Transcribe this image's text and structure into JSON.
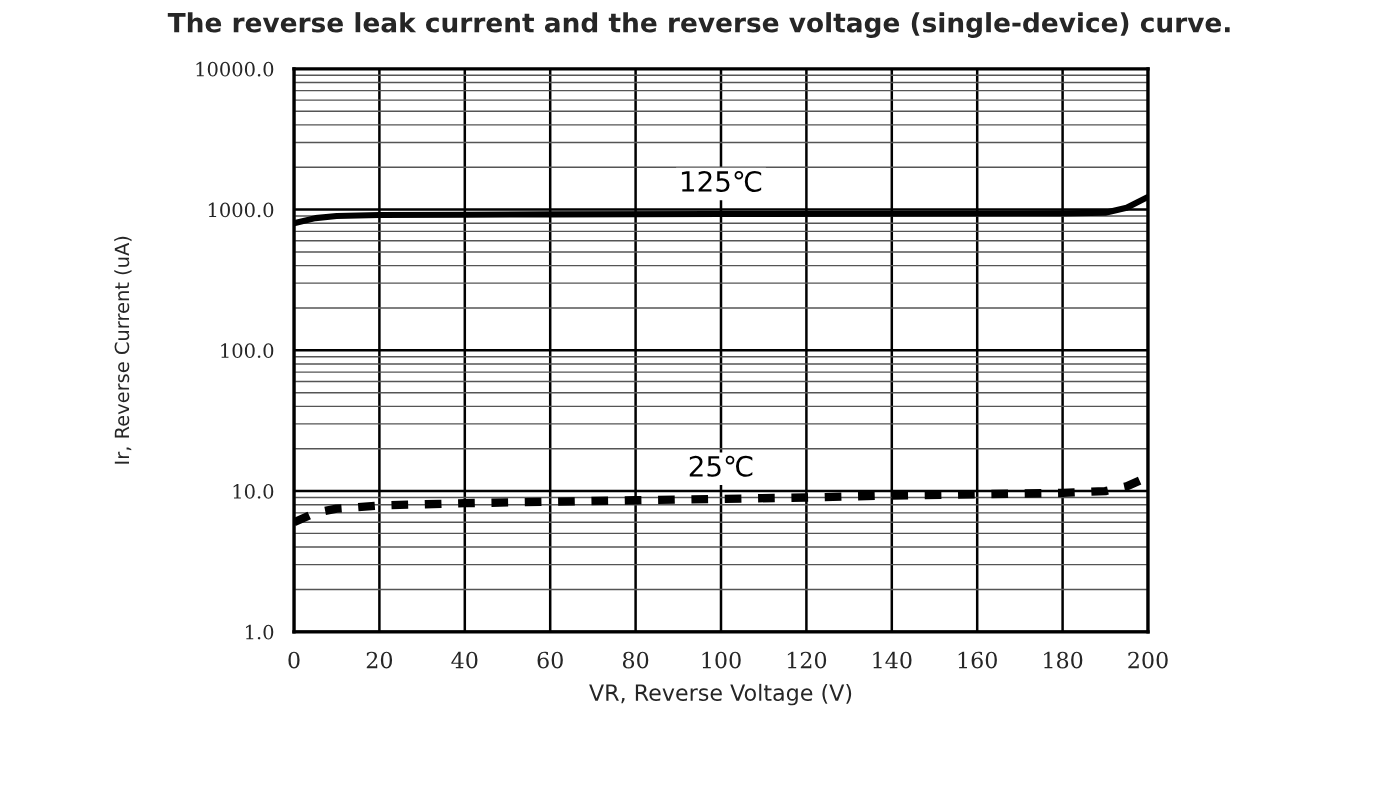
{
  "chart_data": {
    "type": "line",
    "title": "The reverse leak current and the reverse voltage (single-device) curve.",
    "xlabel": "VR, Reverse Voltage (V)",
    "ylabel": "Ir, Reverse Current (uA)",
    "log": "y",
    "grid": true,
    "legend": false,
    "marker": "none",
    "xlim": [
      0,
      200
    ],
    "xticks": [
      0,
      20,
      40,
      60,
      80,
      100,
      120,
      140,
      160,
      180,
      200
    ],
    "ylim": [
      1,
      10000
    ],
    "yticks": [
      {
        "value": 1,
        "label": "1.0"
      },
      {
        "value": 10,
        "label": "10.0"
      },
      {
        "value": 100,
        "label": "100.0"
      },
      {
        "value": 1000,
        "label": "1000.0"
      },
      {
        "value": 10000,
        "label": "10000.0"
      }
    ],
    "series": [
      {
        "name": "125℃",
        "color": "#000000",
        "line_style": "solid",
        "x": [
          0,
          5,
          10,
          20,
          40,
          60,
          100,
          140,
          180,
          190,
          195,
          200
        ],
        "values": [
          800,
          870,
          900,
          915,
          920,
          925,
          930,
          935,
          940,
          950,
          1030,
          1230
        ]
      },
      {
        "name": "25℃",
        "color": "#000000",
        "line_style": "dashed",
        "x": [
          0,
          5,
          10,
          20,
          40,
          60,
          80,
          100,
          120,
          140,
          160,
          180,
          190,
          195,
          200
        ],
        "values": [
          6.0,
          7.0,
          7.5,
          7.9,
          8.2,
          8.4,
          8.6,
          8.8,
          9.0,
          9.3,
          9.5,
          9.7,
          10.0,
          10.8,
          12.6
        ]
      }
    ]
  }
}
